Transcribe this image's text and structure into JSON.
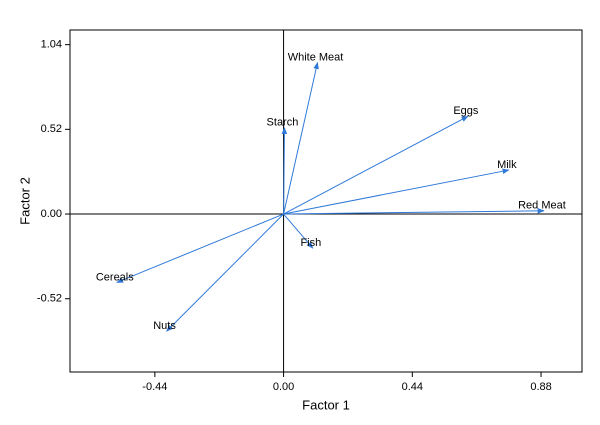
{
  "chart_data": {
    "type": "vector",
    "xlabel": "Factor 1",
    "ylabel": "Factor 2",
    "xlim": [
      -0.73,
      1.02
    ],
    "ylim": [
      -0.97,
      1.13
    ],
    "xticks": [
      -0.44,
      {
        "value": 0,
        "label": "0.00"
      },
      0.44,
      0.88
    ],
    "yticks": [
      -0.52,
      {
        "value": 0,
        "label": "0.00"
      },
      0.52,
      1.04
    ],
    "color": "#2f79d8",
    "points": [
      {
        "label": "White Meat",
        "x": 0.116,
        "y": 0.93
      },
      {
        "label": "Starch",
        "x": 0.003,
        "y": 0.53
      },
      {
        "label": "Eggs",
        "x": 0.63,
        "y": 0.6
      },
      {
        "label": "Milk",
        "x": 0.77,
        "y": 0.27
      },
      {
        "label": "Red Meat",
        "x": 0.89,
        "y": 0.02
      },
      {
        "label": "Fish",
        "x": 0.1,
        "y": -0.21
      },
      {
        "label": "Cereals",
        "x": -0.57,
        "y": -0.42
      },
      {
        "label": "Nuts",
        "x": -0.4,
        "y": -0.72
      }
    ]
  }
}
